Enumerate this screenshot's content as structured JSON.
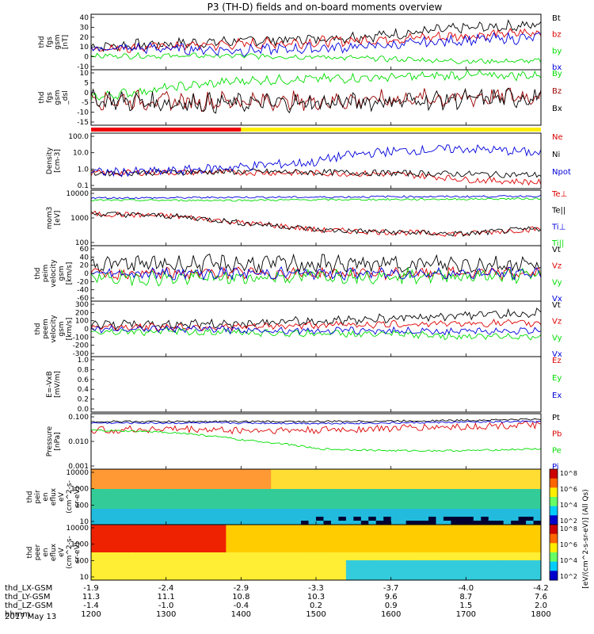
{
  "title": "P3 (TH-D) fields and on-board moments overview",
  "footer": {
    "date": "2017 May 13"
  },
  "orbit": {
    "rows": [
      {
        "label": "thd_LX-GSM",
        "values": [
          "-1.9",
          "-2.4",
          "-2.9",
          "-3.3",
          "-3.7",
          "-4.0",
          "-4.2"
        ]
      },
      {
        "label": "thd_LY-GSM",
        "values": [
          "11.3",
          "11.1",
          "10.8",
          "10.3",
          "9.6",
          "8.7",
          "7.6"
        ]
      },
      {
        "label": "thd_LZ-GSM",
        "values": [
          "-1.4",
          "-1.0",
          "-0.4",
          "0.2",
          "0.9",
          "1.5",
          "2.0"
        ]
      },
      {
        "label": "hhmm",
        "values": [
          "1200",
          "1300",
          "1400",
          "1500",
          "1600",
          "1700",
          "1800"
        ]
      }
    ]
  },
  "colorbar_label": "[eV/(cm^2-s-sr-eV)] (All Qs)",
  "chart_data": [
    {
      "type": "line",
      "ylabel_lines": [
        "thd",
        "fgs",
        "gsm",
        "[nT]"
      ],
      "yticks": [
        "40",
        "30",
        "20",
        "10",
        "0",
        "-10"
      ],
      "ylim": [
        -10,
        42
      ],
      "series": [
        {
          "name": "Bt",
          "color": "#000000",
          "mean": [
            12,
            14,
            17,
            19,
            23,
            29,
            32
          ],
          "amp": 4
        },
        {
          "name": "bz",
          "color": "#dd0000",
          "mean": [
            10,
            12,
            14,
            16,
            19,
            22,
            25
          ],
          "amp": 4
        },
        {
          "name": "by",
          "color": "#00dd00",
          "mean": [
            3,
            3,
            3,
            2,
            0,
            -2,
            -2
          ],
          "amp": 2
        },
        {
          "name": "bx",
          "color": "#0000dd",
          "mean": [
            10,
            10,
            8,
            10,
            13,
            18,
            20
          ],
          "amp": 4
        }
      ]
    },
    {
      "type": "line",
      "ylabel_lines": [
        "thd",
        "fgs",
        "gsm",
        "_dsl"
      ],
      "yticks": [
        "10",
        "5",
        "0",
        "-5",
        "-10",
        "-15"
      ],
      "ylim": [
        -18,
        12
      ],
      "series": [
        {
          "name": "By",
          "color": "#00dd00",
          "mean": [
            -3,
            2,
            6,
            7,
            8,
            9,
            9
          ],
          "amp": 2
        },
        {
          "name": "Bz",
          "color": "#990000",
          "mean": [
            -4,
            -5,
            -5,
            -5,
            -4,
            -3,
            -2
          ],
          "amp": 4
        },
        {
          "name": "Bx",
          "color": "#000000",
          "mean": [
            -4,
            -6,
            -6,
            -6,
            -5,
            -4,
            -3
          ],
          "amp": 4
        }
      ]
    },
    {
      "type": "line",
      "log": true,
      "ylabel_lines": [
        "Density",
        "[cm-3]"
      ],
      "yticks": [
        "100.0",
        "10.0",
        "1.0",
        "0.1"
      ],
      "ylim": [
        0.08,
        300
      ],
      "series": [
        {
          "name": "Ne",
          "color": "#dd0000",
          "mean": [
            0.8,
            0.9,
            0.9,
            0.8,
            0.7,
            0.3,
            0.2
          ],
          "amp": 0.2
        },
        {
          "name": "Ni",
          "color": "#000000",
          "mean": [
            0.8,
            0.9,
            1.0,
            0.9,
            0.8,
            0.7,
            0.6
          ],
          "amp": 0.2
        },
        {
          "name": "Npot",
          "color": "#0000dd",
          "mean": [
            0.9,
            1.0,
            2.0,
            4.0,
            20,
            30,
            15
          ],
          "amp": 0.3
        }
      ]
    },
    {
      "type": "line",
      "log": true,
      "ylabel_lines": [
        "mom3",
        "[eV]"
      ],
      "yticks": [
        "10000",
        "1000",
        "100"
      ],
      "ylim": [
        20,
        15000
      ],
      "series": [
        {
          "name": "Te⊥",
          "color": "#dd0000",
          "mean": [
            900,
            700,
            300,
            130,
            100,
            80,
            150
          ],
          "amp": 0.15
        },
        {
          "name": "Te||",
          "color": "#000000",
          "mean": [
            900,
            700,
            300,
            130,
            100,
            80,
            150
          ],
          "amp": 0.15
        },
        {
          "name": "Ti⊥",
          "color": "#0000dd",
          "mean": [
            6000,
            6000,
            6500,
            6500,
            7000,
            7000,
            7500
          ],
          "amp": 0.05
        },
        {
          "name": "Ti||",
          "color": "#00dd00",
          "mean": [
            4500,
            4500,
            4500,
            4800,
            5000,
            5200,
            5500
          ],
          "amp": 0.05
        }
      ]
    },
    {
      "type": "line",
      "ylabel_lines": [
        "thd",
        "peim",
        "velocity",
        "gsm",
        "[km/s]"
      ],
      "yticks": [
        "60",
        "40",
        "20",
        "0",
        "-20",
        "-40",
        "-60"
      ],
      "ylim": [
        -60,
        60
      ],
      "series": [
        {
          "name": "Vt",
          "color": "#000000",
          "mean": [
            20,
            20,
            20,
            20,
            20,
            20,
            20
          ],
          "amp": 15
        },
        {
          "name": "Vz",
          "color": "#dd0000",
          "mean": [
            0,
            0,
            0,
            0,
            0,
            0,
            0
          ],
          "amp": 10
        },
        {
          "name": "Vy",
          "color": "#00dd00",
          "mean": [
            -10,
            -10,
            -10,
            -5,
            -5,
            -5,
            -5
          ],
          "amp": 12
        },
        {
          "name": "Vx",
          "color": "#0000dd",
          "mean": [
            0,
            0,
            0,
            0,
            0,
            0,
            0
          ],
          "amp": 10
        }
      ]
    },
    {
      "type": "line",
      "ylabel_lines": [
        "thd",
        "peem",
        "velocity",
        "gsm",
        "[km/s]"
      ],
      "yticks": [
        "300",
        "200",
        "100",
        "0",
        "-100",
        "-200",
        "-300"
      ],
      "ylim": [
        -300,
        300
      ],
      "series": [
        {
          "name": "Vt",
          "color": "#000000",
          "mean": [
            50,
            50,
            60,
            80,
            120,
            150,
            170
          ],
          "amp": 40
        },
        {
          "name": "Vz",
          "color": "#dd0000",
          "mean": [
            20,
            20,
            20,
            40,
            50,
            60,
            60
          ],
          "amp": 30
        },
        {
          "name": "Vy",
          "color": "#00dd00",
          "mean": [
            -30,
            -30,
            -40,
            -50,
            -60,
            -80,
            -80
          ],
          "amp": 30
        },
        {
          "name": "Vx",
          "color": "#0000dd",
          "mean": [
            0,
            0,
            -10,
            -20,
            -20,
            -30,
            -20
          ],
          "amp": 30
        }
      ]
    },
    {
      "type": "line",
      "ylabel_lines": [
        "E=-VxB",
        "[mV/m]"
      ],
      "yticks": [
        "1.0",
        "0.8",
        "0.6",
        "0.4",
        "0.2",
        "0.0"
      ],
      "ylim": [
        0,
        1
      ],
      "series": [
        {
          "name": "Ez",
          "color": "#dd0000",
          "mean": [],
          "amp": 0
        },
        {
          "name": "Ey",
          "color": "#00dd00",
          "mean": [],
          "amp": 0
        },
        {
          "name": "Ex",
          "color": "#0000dd",
          "mean": [],
          "amp": 0
        }
      ]
    },
    {
      "type": "line",
      "log": true,
      "ylabel_lines": [
        "Pressure",
        "[nPa]"
      ],
      "yticks": [
        "0.100",
        "0.010",
        "0.001"
      ],
      "ylim": [
        0.0008,
        0.8
      ],
      "series": [
        {
          "name": "Pt",
          "color": "#000000",
          "mean": [
            0.3,
            0.3,
            0.3,
            0.3,
            0.32,
            0.35,
            0.4
          ],
          "amp": 0.05
        },
        {
          "name": "Pb",
          "color": "#dd0000",
          "mean": [
            0.1,
            0.12,
            0.1,
            0.1,
            0.13,
            0.16,
            0.2
          ],
          "amp": 0.2
        },
        {
          "name": "Pe",
          "color": "#00dd00",
          "mean": [
            0.1,
            0.08,
            0.03,
            0.01,
            0.008,
            0.008,
            0.01
          ],
          "amp": 0.05
        },
        {
          "name": "Pi",
          "color": "#0000dd",
          "mean": [
            0.25,
            0.25,
            0.25,
            0.24,
            0.25,
            0.28,
            0.3
          ],
          "amp": 0.05
        }
      ]
    },
    {
      "type": "heatmap",
      "ylabel_lines": [
        "thd",
        "peir",
        "en",
        "eflux",
        "eV",
        "(cm^2-s-",
        "sr-eV)"
      ],
      "yticks": [
        "10000",
        "1000",
        "100",
        "10"
      ],
      "ylim": [
        5,
        30000
      ],
      "colorbar_ticks": [
        "10^8",
        "10^6",
        "10^4",
        "10^2"
      ]
    },
    {
      "type": "heatmap",
      "ylabel_lines": [
        "thd",
        "peer",
        "en",
        "eflux",
        "eV",
        "(cm^2-s-",
        "sr-eV)"
      ],
      "yticks": [
        "10000",
        "1000",
        "100",
        "10"
      ],
      "ylim": [
        5,
        30000
      ],
      "colorbar_ticks": [
        "10^8",
        "10^6",
        "10^4",
        "10^2"
      ]
    }
  ],
  "mode_bar": {
    "segments": [
      {
        "color": "#ee0000",
        "to": 1400
      },
      {
        "color": "#ffee00",
        "to": 1800
      }
    ]
  },
  "x": {
    "range": [
      1200,
      1800
    ]
  }
}
